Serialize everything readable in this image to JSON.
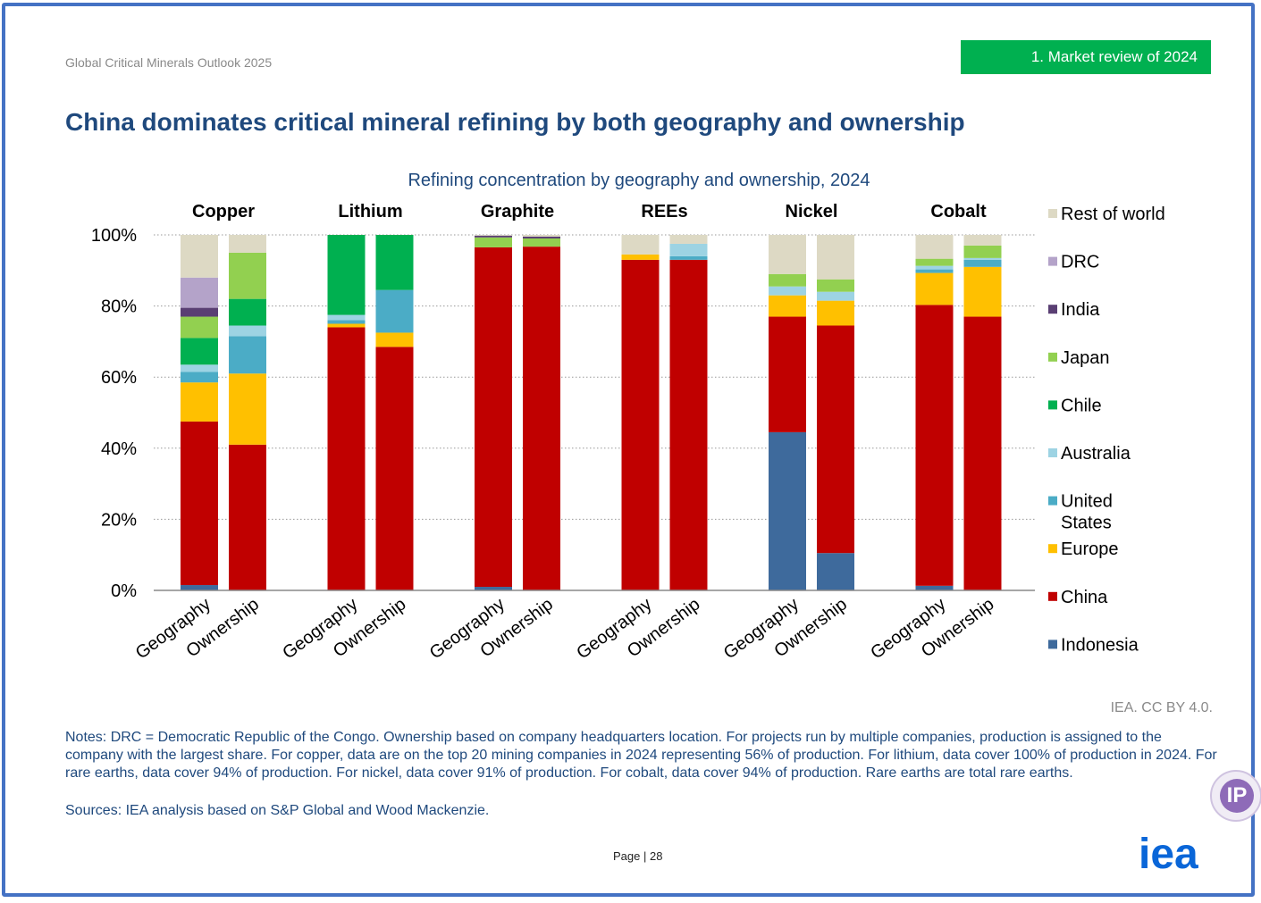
{
  "header": {
    "report_name": "Global Critical Minerals Outlook 2025",
    "section_tag": "1. Market review of 2024"
  },
  "headline": "China dominates critical mineral refining by both geography and ownership",
  "chart_data": {
    "type": "bar",
    "stacked": true,
    "title": "Refining concentration by geography and ownership, 2024",
    "groups": [
      "Copper",
      "Lithium",
      "Graphite",
      "REEs",
      "Nickel",
      "Cobalt"
    ],
    "bar_labels": [
      "Geography",
      "Ownership"
    ],
    "categories": [
      "Copper Geography",
      "Copper Ownership",
      "Lithium Geography",
      "Lithium Ownership",
      "Graphite Geography",
      "Graphite Ownership",
      "REEs Geography",
      "REEs Ownership",
      "Nickel Geography",
      "Nickel Ownership",
      "Cobalt Geography",
      "Cobalt Ownership"
    ],
    "ylim": [
      0,
      100
    ],
    "yticks": [
      "0%",
      "20%",
      "40%",
      "60%",
      "80%",
      "100%"
    ],
    "grid": true,
    "legend_position": "right",
    "series": [
      {
        "name": "Indonesia",
        "color": "#3e6a9c",
        "values": [
          1.5,
          0,
          0,
          0,
          1,
          0,
          0,
          0,
          44.5,
          10.5,
          1.3,
          0
        ]
      },
      {
        "name": "China",
        "color": "#c00000",
        "values": [
          46,
          41,
          74,
          68.5,
          95.5,
          96.7,
          93,
          93,
          32.5,
          64,
          79,
          77
        ]
      },
      {
        "name": "Europe",
        "color": "#ffc000",
        "values": [
          11,
          20,
          1,
          4,
          0,
          0,
          1.5,
          0,
          6,
          7,
          9,
          14
        ]
      },
      {
        "name": "United States",
        "color": "#4bacc6",
        "values": [
          3,
          10.5,
          1,
          12,
          0,
          0,
          0,
          1,
          0,
          0,
          1,
          2
        ]
      },
      {
        "name": "Australia",
        "color": "#9dd3e3",
        "values": [
          2,
          3,
          1.5,
          0,
          0,
          0,
          0,
          3.5,
          2.5,
          2.5,
          1,
          0.5
        ]
      },
      {
        "name": "Chile",
        "color": "#00b050",
        "values": [
          7.5,
          7.5,
          22.5,
          15.5,
          0,
          0,
          0,
          0,
          0,
          0,
          0,
          0
        ]
      },
      {
        "name": "Japan",
        "color": "#92d050",
        "values": [
          6,
          13,
          0,
          0,
          2.8,
          2.3,
          0,
          0,
          3.5,
          3.5,
          2,
          3.5
        ]
      },
      {
        "name": "India",
        "color": "#5a3f73",
        "values": [
          2.5,
          0,
          0,
          0,
          0.5,
          0.5,
          0,
          0,
          0,
          0,
          0,
          0
        ]
      },
      {
        "name": "DRC",
        "color": "#b4a3c9",
        "values": [
          8.5,
          0,
          0,
          0,
          0,
          0,
          0,
          0,
          0,
          0,
          0,
          0
        ]
      },
      {
        "name": "Rest of world",
        "color": "#ddd9c4",
        "values": [
          12,
          5,
          0,
          0,
          0.2,
          0.5,
          5.5,
          2.5,
          11,
          12.5,
          6.7,
          3
        ]
      }
    ]
  },
  "footer": {
    "credit": "IEA. CC BY 4.0.",
    "notes": "Notes: DRC = Democratic Republic of the Congo. Ownership based on company headquarters location. For projects run by multiple companies, production is assigned to the company with the largest share. For copper, data are on the top 20 mining companies in 2024 representing 56% of production. For lithium, data cover 100% of production in 2024. For rare earths, data cover 94% of production. For nickel, data cover 91% of production. For cobalt, data cover 94% of production. Rare earths are total rare earths.",
    "sources": "Sources: IEA analysis based on S&P Global and Wood Mackenzie.",
    "page_number": "Page | 28",
    "logo_text": "iea",
    "badge_text": "IP"
  }
}
